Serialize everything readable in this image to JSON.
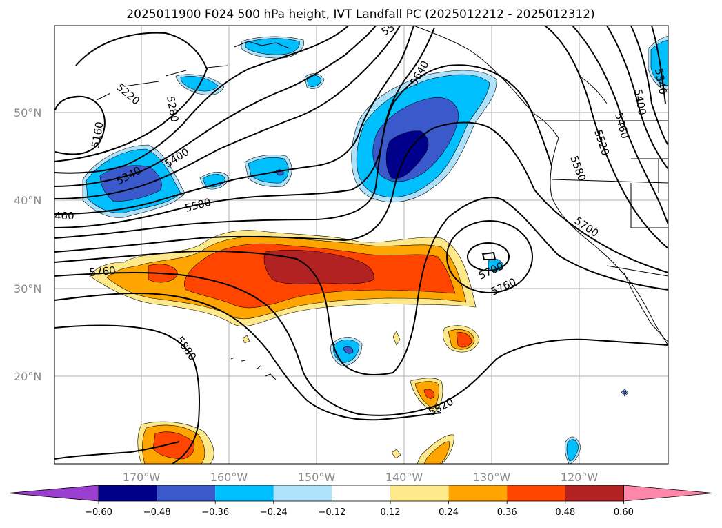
{
  "title": "2025011900 F024 500 hPa height, IVT Landfall PC (2025012212 - 2025012312)",
  "lat_labels": [
    "50°N",
    "40°N",
    "30°N",
    "20°N"
  ],
  "lon_labels": [
    "170°W",
    "160°W",
    "150°W",
    "140°W",
    "130°W",
    "120°W"
  ],
  "colorbar": {
    "colors": [
      "#9a3fd0",
      "#00008b",
      "#3a5acc",
      "#00bfff",
      "#aee2fa",
      "#ffffff",
      "#fee98a",
      "#ffa500",
      "#ff4500",
      "#b22222",
      "#ff88aa"
    ],
    "labels": [
      "−0.60",
      "−0.48",
      "−0.36",
      "−0.24",
      "−0.12",
      "0.12",
      "0.24",
      "0.36",
      "0.48",
      "0.60"
    ]
  },
  "contour_labels": [
    "5220",
    "5280",
    "5160",
    "5340",
    "5400",
    "5580",
    "460",
    "5760",
    "5880",
    "5640",
    "5400",
    "5340",
    "5460",
    "5520",
    "5580",
    "5700",
    "5700",
    "5760",
    "5820",
    "55"
  ],
  "palette": {
    "orange_light": "#fee98a",
    "orange": "#ffa500",
    "red_orange": "#ff4500",
    "dark_red": "#b22222",
    "blue_light": "#aee2fa",
    "blue": "#00bfff",
    "blue_mid": "#3a5acc",
    "navy": "#00008b"
  }
}
